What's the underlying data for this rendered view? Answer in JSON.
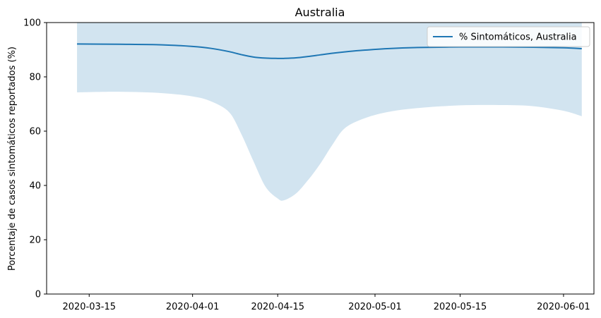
{
  "chart_data": {
    "type": "line",
    "title": "Australia",
    "xlabel": "",
    "ylabel": "Porcentaje de casos sintomáticos reportados (%)",
    "xlim": [
      "2020-03-08",
      "2020-06-06"
    ],
    "ylim": [
      0,
      100
    ],
    "x_ticks": [
      "2020-03-15",
      "2020-04-01",
      "2020-04-15",
      "2020-05-01",
      "2020-05-15",
      "2020-06-01"
    ],
    "y_ticks": [
      0,
      20,
      40,
      60,
      80,
      100
    ],
    "legend_position": "top-right",
    "grid": false,
    "series": [
      {
        "name": "% Sintomáticos, Australia",
        "color": "#1f77b4",
        "band_color": "#1f77b4",
        "band_opacity": 0.2,
        "x": [
          "2020-03-13",
          "2020-03-20",
          "2020-03-27",
          "2020-04-01",
          "2020-04-04",
          "2020-04-07",
          "2020-04-09",
          "2020-04-11",
          "2020-04-13",
          "2020-04-15",
          "2020-04-16",
          "2020-04-18",
          "2020-04-20",
          "2020-04-22",
          "2020-04-24",
          "2020-04-26",
          "2020-04-29",
          "2020-05-03",
          "2020-05-08",
          "2020-05-15",
          "2020-05-22",
          "2020-05-27",
          "2020-06-01",
          "2020-06-04"
        ],
        "y": [
          92.1,
          92.0,
          91.8,
          91.2,
          90.5,
          89.3,
          88.2,
          87.3,
          86.9,
          86.8,
          86.8,
          87.0,
          87.5,
          88.1,
          88.7,
          89.2,
          89.8,
          90.4,
          90.8,
          91.0,
          91.0,
          90.9,
          90.7,
          90.4
        ],
        "lower": [
          74.3,
          74.5,
          74.0,
          72.8,
          71.0,
          67.0,
          59.0,
          49.0,
          39.5,
          35.2,
          34.5,
          37.0,
          42.0,
          48.0,
          55.0,
          61.0,
          64.5,
          67.0,
          68.5,
          69.5,
          69.6,
          69.2,
          67.5,
          65.5
        ],
        "upper": [
          100,
          100,
          100,
          100,
          100,
          100,
          100,
          100,
          100,
          100,
          100,
          100,
          100,
          100,
          100,
          100,
          100,
          100,
          100,
          100,
          100,
          100,
          100,
          100
        ]
      }
    ]
  }
}
